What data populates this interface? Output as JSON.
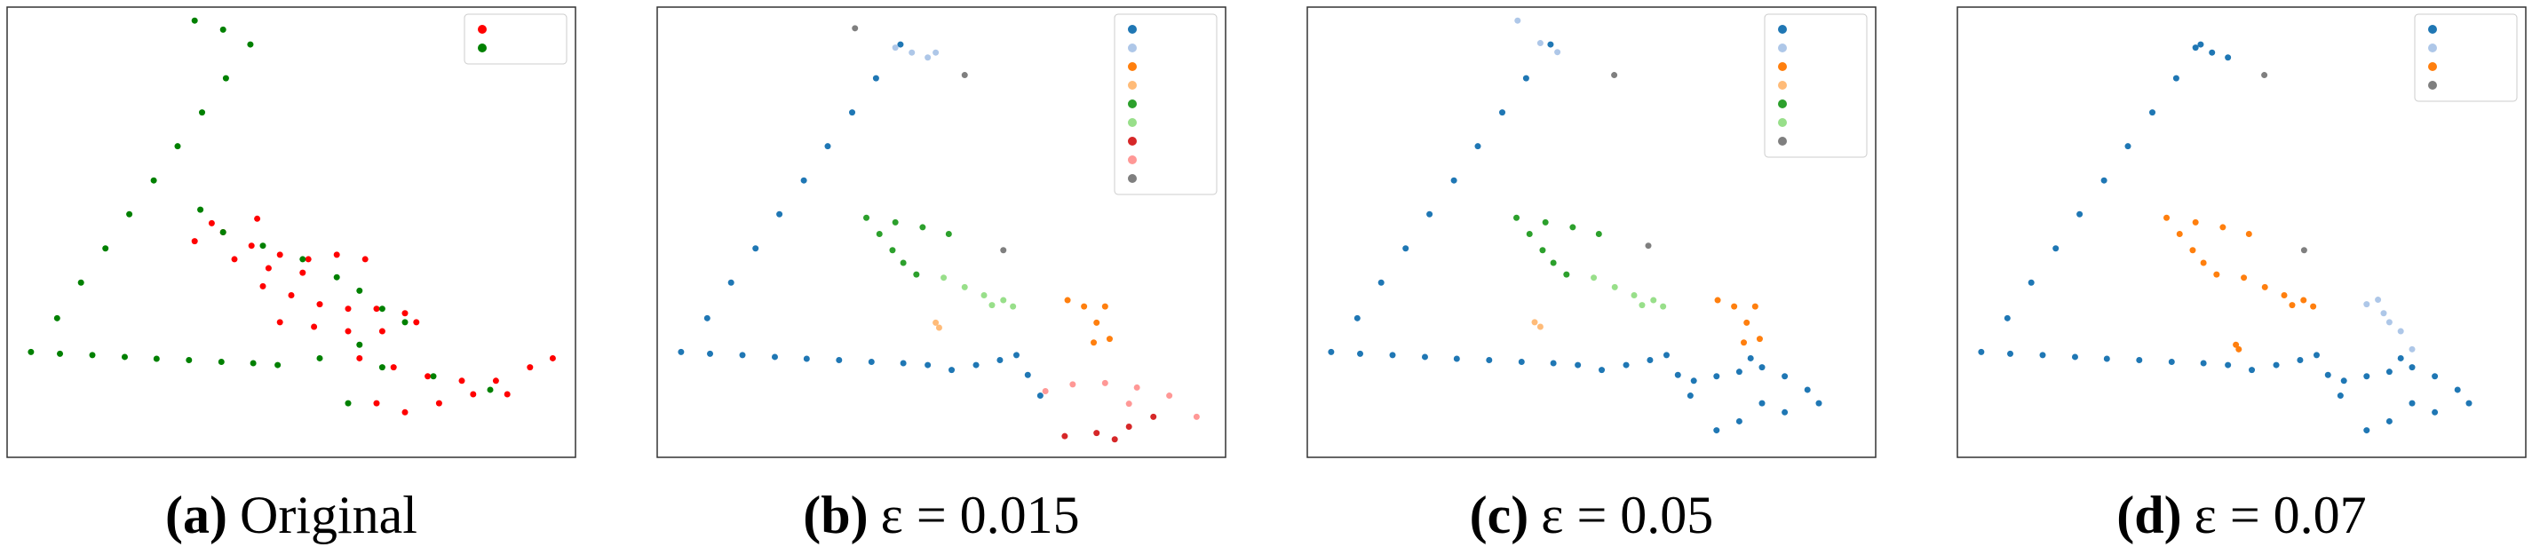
{
  "chart_data": [
    {
      "type": "scatter",
      "panel_label": "(a)",
      "caption": "Original",
      "xlim": [
        0,
        100
      ],
      "ylim": [
        0,
        100
      ],
      "legend": "upper right",
      "series": [
        {
          "color": "#ff0000",
          "x": [
            33,
            38,
            43,
            48,
            53,
            58,
            63,
            40,
            46,
            52,
            36,
            44,
            45,
            50,
            55,
            60,
            65,
            70,
            48,
            54,
            60,
            66,
            72,
            62,
            68,
            74,
            80,
            86,
            92,
            96,
            65,
            70,
            76,
            82,
            88
          ],
          "y": [
            48,
            50,
            47,
            45,
            44,
            45,
            44,
            44,
            42,
            41,
            52,
            53,
            38,
            36,
            34,
            33,
            33,
            32,
            30,
            29,
            28,
            28,
            30,
            22,
            20,
            18,
            17,
            17,
            20,
            22,
            12,
            10,
            12,
            14,
            14
          ]
        },
        {
          "color": "#008000",
          "x": [
            33,
            38,
            42.8,
            38.5,
            34.3,
            30.0,
            25.8,
            21.5,
            17.3,
            13.0,
            8.8,
            4.2,
            9.3,
            15.0,
            20.7,
            26.3,
            32.0,
            37.7,
            43.3,
            47.6,
            34,
            38,
            45,
            52,
            58,
            62,
            66,
            70,
            62,
            55,
            66,
            75,
            85,
            60
          ],
          "y": [
            97,
            95,
            91.7,
            84.2,
            76.6,
            69.1,
            61.5,
            54.0,
            46.4,
            38.8,
            30.9,
            23.4,
            23.0,
            22.7,
            22.3,
            21.9,
            21.6,
            21.2,
            20.9,
            20.5,
            55,
            50,
            47,
            44,
            40,
            37,
            33,
            30,
            25,
            22,
            20,
            18,
            15,
            12
          ]
        }
      ]
    },
    {
      "type": "scatter",
      "panel_label": "(b)",
      "caption": "ε = 0.015",
      "xlim": [
        0,
        100
      ],
      "ylim": [
        0,
        100
      ],
      "legend": "upper right",
      "series": [
        {
          "color": "#1f77b4",
          "x": [
            42.8,
            38.5,
            34.3,
            30.0,
            25.8,
            21.5,
            17.3,
            13.0,
            8.8,
            4.2,
            9.3,
            15.0,
            20.7,
            26.3,
            32.0,
            37.7,
            43.3,
            47.6,
            51.8,
            56.1,
            60.3,
            63.2,
            65.2,
            67.4
          ],
          "y": [
            91.7,
            84.2,
            76.6,
            69.1,
            61.5,
            54.0,
            46.4,
            38.8,
            30.9,
            23.4,
            23.0,
            22.7,
            22.3,
            21.9,
            21.6,
            21.2,
            20.9,
            20.5,
            19.4,
            20.5,
            21.6,
            22.7,
            18.3,
            13.7
          ]
        },
        {
          "color": "#aec7e8",
          "x": [
            41.9,
            44.8,
            47.6,
            49.0
          ],
          "y": [
            91.0,
            89.9,
            88.8,
            89.9
          ]
        },
        {
          "color": "#ff7f0e",
          "x": [
            72.2,
            75.1,
            77.3,
            79.6,
            76.8,
            78.8
          ],
          "y": [
            34.9,
            33.5,
            29.9,
            26.3,
            25.5,
            33.5
          ]
        },
        {
          "color": "#ffbb78",
          "x": [
            49.0,
            49.6
          ],
          "y": [
            29.9,
            28.8
          ]
        },
        {
          "color": "#2ca02c",
          "x": [
            36.8,
            39.1,
            41.4,
            43.3,
            45.6,
            41.9,
            46.7,
            51.3
          ],
          "y": [
            53.2,
            49.6,
            46.0,
            43.2,
            40.6,
            52.2,
            51.1,
            49.6
          ]
        },
        {
          "color": "#98df8a",
          "x": [
            50.4,
            54.1,
            57.5,
            60.9,
            62.6,
            58.9
          ],
          "y": [
            39.9,
            37.8,
            36.0,
            34.9,
            33.5,
            33.8
          ]
        },
        {
          "color": "#d62728",
          "x": [
            71.7,
            77.3,
            83.0,
            87.3,
            80.5
          ],
          "y": [
            4.7,
            5.4,
            6.8,
            9.0,
            4.0
          ]
        },
        {
          "color": "#ff9896",
          "x": [
            68.3,
            73.1,
            78.8,
            84.4,
            90.1,
            94.9,
            83.0
          ],
          "y": [
            14.7,
            16.2,
            16.5,
            15.5,
            13.7,
            9.0,
            11.9
          ]
        },
        {
          "color": "#7f7f7f",
          "x": [
            34.8,
            54.1,
            60.9
          ],
          "y": [
            95.3,
            84.9,
            46.0
          ]
        }
      ]
    },
    {
      "type": "scatter",
      "panel_label": "(c)",
      "caption": "ε = 0.05",
      "xlim": [
        0,
        100
      ],
      "ylim": [
        0,
        100
      ],
      "legend": "upper right",
      "series": [
        {
          "color": "#1f77b4",
          "x": [
            42.8,
            38.5,
            34.3,
            30.0,
            25.8,
            21.5,
            17.3,
            13.0,
            8.8,
            4.2,
            9.3,
            15.0,
            20.7,
            26.3,
            32.0,
            37.7,
            43.3,
            47.6,
            51.8,
            56.1,
            60.3,
            63.2,
            65.2,
            67.4,
            68,
            72,
            76,
            80,
            84,
            88,
            80,
            76,
            72,
            84,
            90,
            78
          ],
          "y": [
            91.7,
            84.2,
            76.6,
            69.1,
            61.5,
            54.0,
            46.4,
            38.8,
            30.9,
            23.4,
            23.0,
            22.7,
            22.3,
            21.9,
            21.6,
            21.2,
            20.9,
            20.5,
            19.4,
            20.5,
            21.6,
            22.7,
            18.3,
            13.7,
            17,
            18,
            19,
            20,
            18,
            15,
            12,
            8,
            6,
            10,
            12,
            22
          ]
        },
        {
          "color": "#aec7e8",
          "x": [
            37,
            41,
            44
          ],
          "y": [
            97,
            92,
            90
          ]
        },
        {
          "color": "#ff7f0e",
          "x": [
            72.2,
            75.1,
            77.3,
            79.6,
            76.8,
            78.8
          ],
          "y": [
            34.9,
            33.5,
            29.9,
            26.3,
            25.5,
            33.5
          ]
        },
        {
          "color": "#ffbb78",
          "x": [
            40,
            41
          ],
          "y": [
            30,
            29
          ]
        },
        {
          "color": "#2ca02c",
          "x": [
            36.8,
            39.1,
            41.4,
            43.3,
            45.6,
            41.9,
            46.7,
            51.3
          ],
          "y": [
            53.2,
            49.6,
            46.0,
            43.2,
            40.6,
            52.2,
            51.1,
            49.6
          ]
        },
        {
          "color": "#98df8a",
          "x": [
            50.4,
            54.1,
            57.5,
            60.9,
            62.6,
            58.9
          ],
          "y": [
            39.9,
            37.8,
            36.0,
            34.9,
            33.5,
            33.8
          ]
        },
        {
          "color": "#7f7f7f",
          "x": [
            54,
            60
          ],
          "y": [
            84.9,
            47
          ]
        }
      ]
    },
    {
      "type": "scatter",
      "panel_label": "(d)",
      "caption": "ε = 0.07",
      "xlim": [
        0,
        100
      ],
      "ylim": [
        0,
        100
      ],
      "legend": "upper right",
      "series": [
        {
          "color": "#1f77b4",
          "x": [
            41.9,
            44.8,
            47.6,
            42.8,
            38.5,
            34.3,
            30.0,
            25.8,
            21.5,
            17.3,
            13.0,
            8.8,
            4.2,
            9.3,
            15.0,
            20.7,
            26.3,
            32.0,
            37.7,
            43.3,
            47.6,
            51.8,
            56.1,
            60.3,
            63.2,
            65.2,
            67.4,
            68,
            72,
            76,
            80,
            84,
            88,
            80,
            76,
            72,
            84,
            90,
            78
          ],
          "y": [
            91,
            89.9,
            88.8,
            91.7,
            84.2,
            76.6,
            69.1,
            61.5,
            54.0,
            46.4,
            38.8,
            30.9,
            23.4,
            23.0,
            22.7,
            22.3,
            21.9,
            21.6,
            21.2,
            20.9,
            20.5,
            19.4,
            20.5,
            21.6,
            22.7,
            18.3,
            13.7,
            17,
            18,
            19,
            20,
            18,
            15,
            12,
            8,
            6,
            10,
            12,
            22
          ]
        },
        {
          "color": "#aec7e8",
          "x": [
            72,
            75,
            78,
            80,
            76,
            74
          ],
          "y": [
            34,
            32,
            28,
            24,
            30,
            35
          ]
        },
        {
          "color": "#ff7f0e",
          "x": [
            36.8,
            39.1,
            41.4,
            43.3,
            45.6,
            41.9,
            46.7,
            51.3,
            50.4,
            54.1,
            57.5,
            60.9,
            62.6,
            58.9,
            49,
            49.5
          ],
          "y": [
            53.2,
            49.6,
            46.0,
            43.2,
            40.6,
            52.2,
            51.1,
            49.6,
            39.9,
            37.8,
            36.0,
            34.9,
            33.5,
            33.8,
            25,
            24
          ]
        },
        {
          "color": "#7f7f7f",
          "x": [
            54,
            61
          ],
          "y": [
            84.9,
            46
          ]
        }
      ]
    }
  ]
}
